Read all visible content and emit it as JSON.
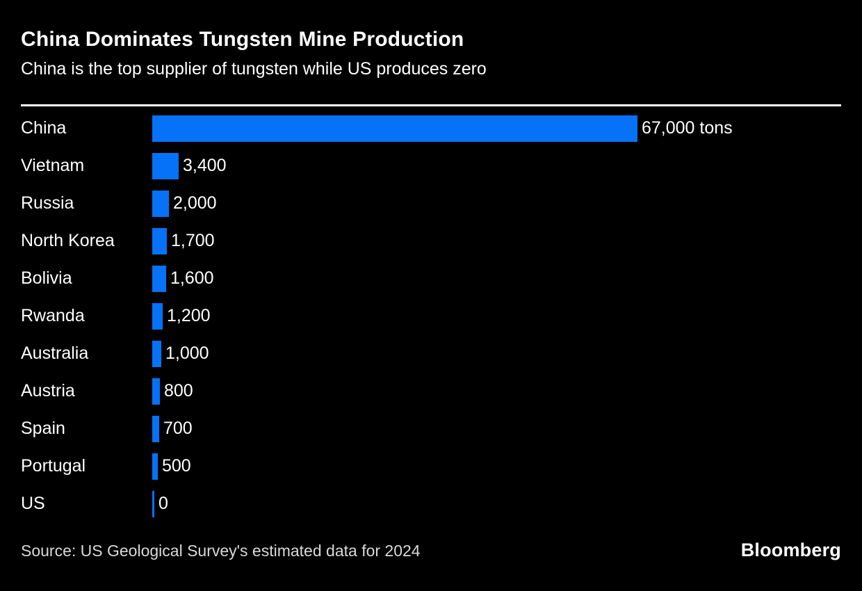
{
  "header": {
    "title": "China Dominates Tungsten Mine Production",
    "subtitle": "China is the top supplier of tungsten while US produces zero"
  },
  "chart_data": {
    "type": "bar",
    "orientation": "horizontal",
    "title": "China Dominates Tungsten Mine Production",
    "subtitle": "China is the top supplier of tungsten while US produces zero",
    "unit": "tons",
    "categories": [
      "China",
      "Vietnam",
      "Russia",
      "North Korea",
      "Bolivia",
      "Rwanda",
      "Australia",
      "Austria",
      "Spain",
      "Portugal",
      "US"
    ],
    "values": [
      67000,
      3400,
      2000,
      1700,
      1600,
      1200,
      1000,
      800,
      700,
      500,
      0
    ],
    "value_labels": [
      "67,000 tons",
      "3,400",
      "2,000",
      "1,700",
      "1,600",
      "1,200",
      "1,000",
      "800",
      "700",
      "500",
      "0"
    ],
    "xlim": [
      0,
      67000
    ],
    "bar_color": "#0572f8",
    "grid": false,
    "legend": false,
    "axis_ticks": "none"
  },
  "footer": {
    "source": "Source: US Geological Survey's estimated data for 2024",
    "brand": "Bloomberg"
  },
  "colors": {
    "background": "#000000",
    "text": "#ffffff",
    "bar": "#0572f8",
    "divider": "#ffffff",
    "source_text": "#d9d9d9"
  }
}
